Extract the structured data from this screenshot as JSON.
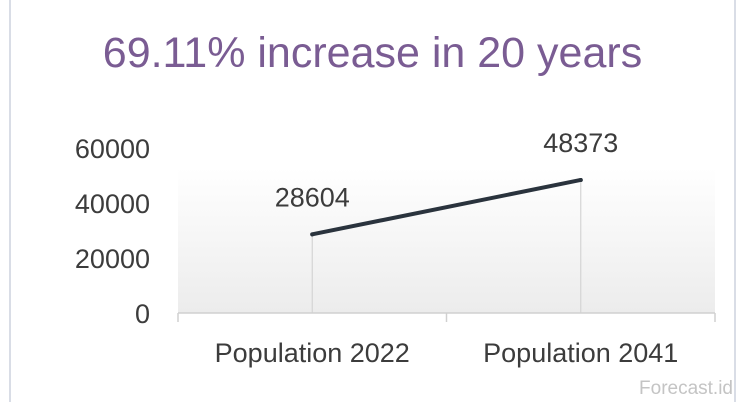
{
  "watermark": "Forecast.id",
  "chart_data": {
    "type": "line",
    "title": "69.11% increase in 20 years",
    "categories": [
      "Population 2022",
      "Population 2041"
    ],
    "series": [
      {
        "values": [
          28604,
          48373
        ],
        "data_labels": [
          "28604",
          "48373"
        ]
      }
    ],
    "ylim": [
      0,
      60000
    ],
    "yticks": [
      0,
      20000,
      40000,
      60000
    ],
    "ytick_labels": [
      "0",
      "20000",
      "40000",
      "60000"
    ],
    "grid": false,
    "legend": "none",
    "colors": {
      "line": "#2a333d",
      "title": "#7a5c93",
      "axis": "#d0d0d0",
      "text": "#3c3c3c"
    }
  }
}
